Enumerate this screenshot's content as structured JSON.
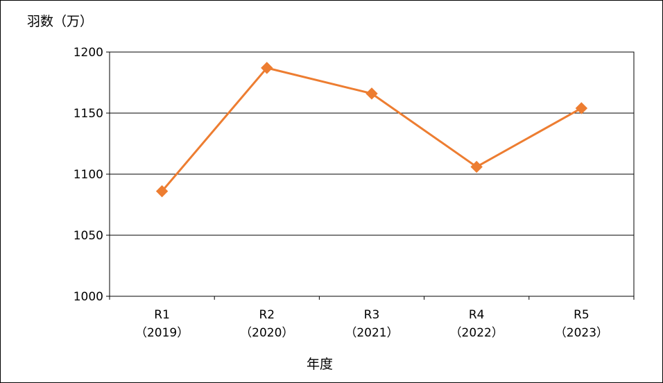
{
  "chart_data": {
    "type": "line",
    "ylabel": "羽数（万）",
    "xlabel": "年度",
    "categories": [
      {
        "line1": "R1",
        "line2": "（2019）"
      },
      {
        "line1": "R2",
        "line2": "（2020）"
      },
      {
        "line1": "R3",
        "line2": "（2021）"
      },
      {
        "line1": "R4",
        "line2": "（2022）"
      },
      {
        "line1": "R5",
        "line2": "（2023）"
      }
    ],
    "series": [
      {
        "values": [
          1086,
          1187,
          1166,
          1106,
          1154
        ],
        "color": "#ED7D31",
        "marker": "diamond"
      }
    ],
    "ylim": [
      1000,
      1200
    ],
    "yticks": [
      1000,
      1050,
      1100,
      1150,
      1200
    ],
    "grid": true
  }
}
